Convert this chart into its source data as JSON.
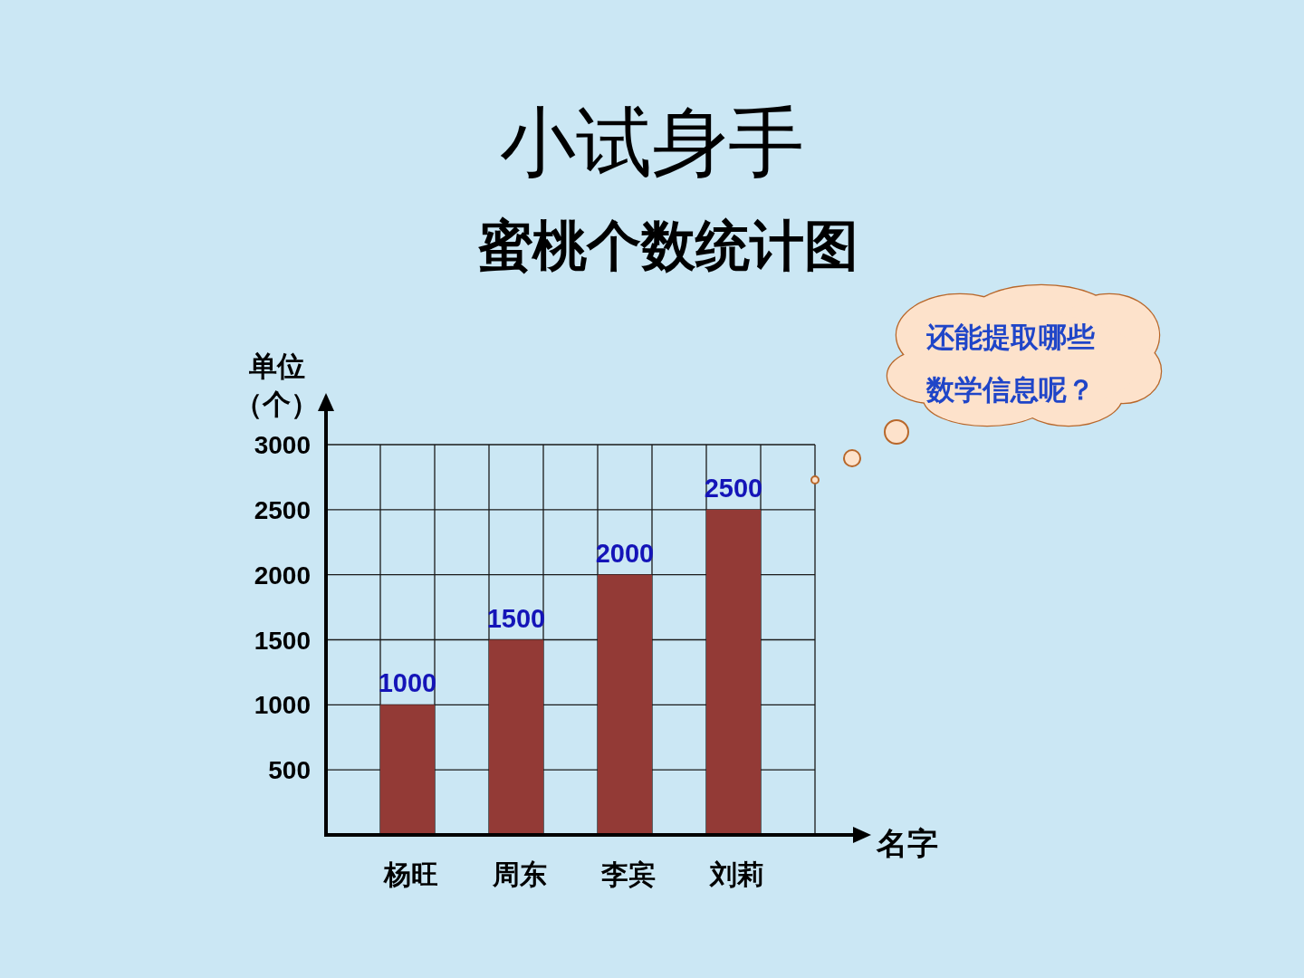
{
  "chart_data": {
    "type": "bar",
    "title": "小试身手",
    "subtitle": "蜜桃个数统计图",
    "xlabel": "名字",
    "ylabel": "单位（个）",
    "categories": [
      "杨旺",
      "周东",
      "李宾",
      "刘莉"
    ],
    "values": [
      1000,
      1500,
      2000,
      2500
    ],
    "color": "#933a36",
    "ylim": [
      0,
      3000
    ],
    "yticks": [
      500,
      1000,
      1500,
      2000,
      2500,
      3000
    ],
    "grid": true,
    "data_labels": true,
    "annotations": [
      "还能提取哪些数学信息呢？"
    ]
  }
}
